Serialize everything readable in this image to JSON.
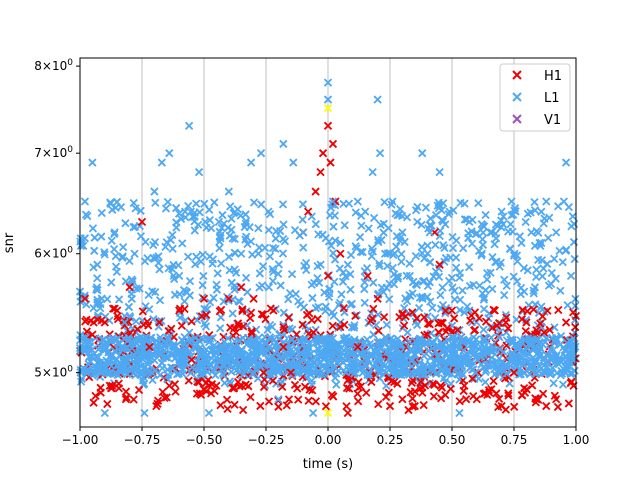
{
  "chart_data": {
    "type": "scatter",
    "xlabel": "time (s)",
    "ylabel": "snr",
    "xlim": [
      -1.0,
      1.0
    ],
    "ylim": [
      4.6,
      8.1
    ],
    "yscale": "log",
    "grid": "vertical lines at x ticks",
    "legend_position": "top-right",
    "x_ticks": [
      "−1.00",
      "−0.75",
      "−0.50",
      "−0.25",
      "0.00",
      "0.25",
      "0.50",
      "0.75",
      "1.00"
    ],
    "x_tick_values": [
      -1.0,
      -0.75,
      -0.5,
      -0.25,
      0.0,
      0.25,
      0.5,
      0.75,
      1.0
    ],
    "y_ticks": [
      {
        "value": 5,
        "base": "5",
        "mult": "×",
        "exp_base": "10",
        "exp": "0"
      },
      {
        "value": 6,
        "base": "6",
        "mult": "×",
        "exp_base": "10",
        "exp": "0"
      },
      {
        "value": 7,
        "base": "7",
        "mult": "×",
        "exp_base": "10",
        "exp": "0"
      },
      {
        "value": 8,
        "base": "8",
        "mult": "×",
        "exp_base": "10",
        "exp": "0"
      }
    ],
    "series": [
      {
        "name": "H1",
        "color": "#ee0000",
        "marker": "x",
        "points": [
          [
            -0.98,
            5.6
          ],
          [
            -0.95,
            5.3
          ],
          [
            -0.9,
            5.4
          ],
          [
            -0.88,
            4.9
          ],
          [
            -0.85,
            5.5
          ],
          [
            -0.8,
            5.7
          ],
          [
            -0.75,
            6.3
          ],
          [
            -0.72,
            5.2
          ],
          [
            -0.68,
            5.4
          ],
          [
            -0.64,
            4.9
          ],
          [
            -0.6,
            5.5
          ],
          [
            -0.55,
            5.1
          ],
          [
            -0.5,
            5.6
          ],
          [
            -0.45,
            4.9
          ],
          [
            -0.4,
            5.6
          ],
          [
            -0.35,
            5.7
          ],
          [
            -0.3,
            5.6
          ],
          [
            -0.26,
            5.0
          ],
          [
            -0.22,
            5.5
          ],
          [
            -0.18,
            5.2
          ],
          [
            -0.15,
            5.0
          ],
          [
            -0.1,
            6.2
          ],
          [
            -0.08,
            6.4
          ],
          [
            -0.05,
            6.6
          ],
          [
            -0.03,
            6.8
          ],
          [
            -0.02,
            7.0
          ],
          [
            0.0,
            7.3
          ],
          [
            0.0,
            5.8
          ],
          [
            0.01,
            6.9
          ],
          [
            0.02,
            7.1
          ],
          [
            0.03,
            6.5
          ],
          [
            0.05,
            6.0
          ],
          [
            0.08,
            4.7
          ],
          [
            0.12,
            5.2
          ],
          [
            0.16,
            5.8
          ],
          [
            0.2,
            5.6
          ],
          [
            0.25,
            4.75
          ],
          [
            0.3,
            4.8
          ],
          [
            0.35,
            4.75
          ],
          [
            0.4,
            5.3
          ],
          [
            0.43,
            6.2
          ],
          [
            0.45,
            5.9
          ],
          [
            0.5,
            5.5
          ],
          [
            0.55,
            4.9
          ],
          [
            0.6,
            4.8
          ],
          [
            0.65,
            4.85
          ],
          [
            0.7,
            4.75
          ],
          [
            0.75,
            5.0
          ],
          [
            0.8,
            5.4
          ],
          [
            0.84,
            4.8
          ],
          [
            0.88,
            4.75
          ],
          [
            0.92,
            4.8
          ],
          [
            0.96,
            5.4
          ],
          [
            0.99,
            4.9
          ]
        ]
      },
      {
        "name": "L1",
        "color": "#4ea8f2",
        "marker": "x",
        "points": [
          [
            -0.98,
            6.5
          ],
          [
            -0.95,
            6.9
          ],
          [
            -0.93,
            5.9
          ],
          [
            -0.9,
            4.7
          ],
          [
            -0.86,
            6.2
          ],
          [
            -0.82,
            5.4
          ],
          [
            -0.78,
            6.0
          ],
          [
            -0.74,
            4.7
          ],
          [
            -0.7,
            6.6
          ],
          [
            -0.67,
            6.9
          ],
          [
            -0.64,
            7.0
          ],
          [
            -0.6,
            5.8
          ],
          [
            -0.56,
            7.3
          ],
          [
            -0.52,
            6.8
          ],
          [
            -0.48,
            4.7
          ],
          [
            -0.44,
            6.3
          ],
          [
            -0.4,
            6.6
          ],
          [
            -0.35,
            6.0
          ],
          [
            -0.31,
            6.9
          ],
          [
            -0.27,
            7.0
          ],
          [
            -0.24,
            6.4
          ],
          [
            -0.2,
            4.8
          ],
          [
            -0.18,
            7.1
          ],
          [
            -0.14,
            6.9
          ],
          [
            -0.1,
            6.2
          ],
          [
            -0.06,
            4.7
          ],
          [
            -0.03,
            5.9
          ],
          [
            0.0,
            7.8
          ],
          [
            0.0,
            7.6
          ],
          [
            0.02,
            6.5
          ],
          [
            0.05,
            6.1
          ],
          [
            0.08,
            5.9
          ],
          [
            0.12,
            6.5
          ],
          [
            0.15,
            6.4
          ],
          [
            0.18,
            6.8
          ],
          [
            0.2,
            7.6
          ],
          [
            0.21,
            7.0
          ],
          [
            0.23,
            6.0
          ],
          [
            0.26,
            6.5
          ],
          [
            0.3,
            6.2
          ],
          [
            0.33,
            5.8
          ],
          [
            0.36,
            6.3
          ],
          [
            0.38,
            7.0
          ],
          [
            0.41,
            6.2
          ],
          [
            0.45,
            6.8
          ],
          [
            0.49,
            6.4
          ],
          [
            0.53,
            4.7
          ],
          [
            0.57,
            6.3
          ],
          [
            0.62,
            6.0
          ],
          [
            0.66,
            6.2
          ],
          [
            0.7,
            6.4
          ],
          [
            0.74,
            6.5
          ],
          [
            0.78,
            6.1
          ],
          [
            0.82,
            6.2
          ],
          [
            0.86,
            6.1
          ],
          [
            0.88,
            6.5
          ],
          [
            0.92,
            6.2
          ],
          [
            0.96,
            6.9
          ],
          [
            0.98,
            5.8
          ],
          [
            0.99,
            5.2
          ]
        ]
      },
      {
        "name": "V1",
        "color": "#9f4fbf",
        "marker": "x",
        "points": []
      }
    ],
    "highlight_points": [
      {
        "x": 0.0,
        "y": 7.5,
        "color": "#ffff00"
      },
      {
        "x": 0.0,
        "y": 4.7,
        "color": "#ffff00"
      }
    ]
  }
}
